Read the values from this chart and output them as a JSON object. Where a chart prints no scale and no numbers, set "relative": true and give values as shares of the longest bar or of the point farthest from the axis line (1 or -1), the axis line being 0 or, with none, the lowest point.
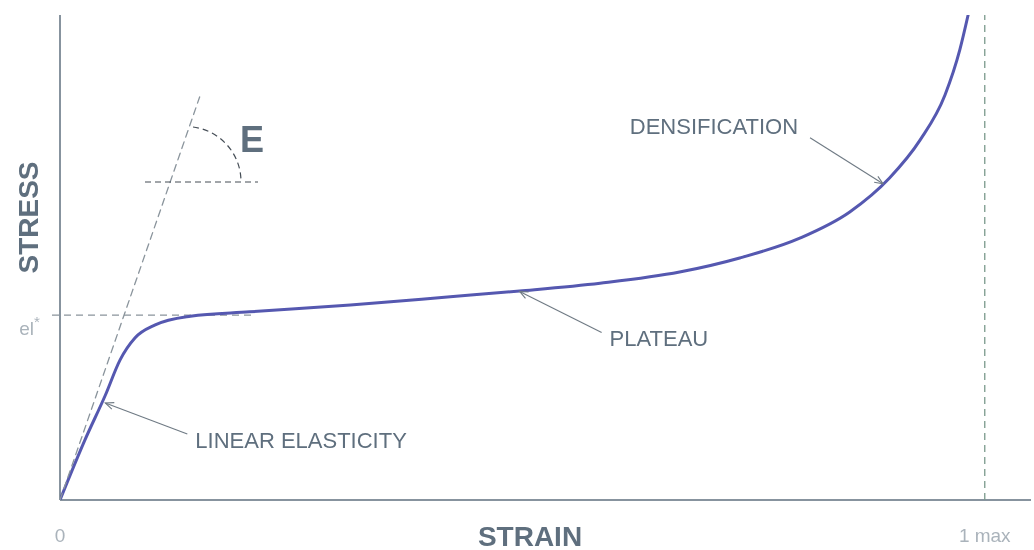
{
  "chart_data": {
    "type": "line",
    "relative": true,
    "xlabel": "STRAIN",
    "ylabel": "STRESS",
    "xlim": [
      0,
      1.05
    ],
    "xticks": [
      0,
      {
        "value": 1,
        "label": "1 max"
      }
    ],
    "series": [
      {
        "color": "#5558b0",
        "x": [
          0,
          0.027,
          0.049,
          0.065,
          0.081,
          0.103,
          0.141,
          0.205,
          0.314,
          0.422,
          0.497,
          0.584,
          0.67,
          0.735,
          0.8,
          0.854,
          0.897,
          0.93,
          0.957,
          0.973,
          0.982
        ],
        "values": [
          0,
          0.124,
          0.216,
          0.289,
          0.334,
          0.361,
          0.379,
          0.388,
          0.402,
          0.419,
          0.431,
          0.447,
          0.47,
          0.499,
          0.54,
          0.594,
          0.664,
          0.742,
          0.835,
          0.928,
          1
        ]
      },
      {
        "type": "line",
        "color": "#8a949c",
        "line_style": "dashed",
        "x": [
          0,
          0.151
        ],
        "values": [
          0,
          0.831
        ]
      }
    ],
    "ref_lines": [
      {
        "axis": "y",
        "value": 0.381,
        "label": "el$^{*}$",
        "color": "#8a949c",
        "line_style": "dashed"
      },
      {
        "axis": "x",
        "value": 1,
        "color": "#7a9a8c",
        "line_style": "dashed"
      }
    ],
    "annotations": [
      "E",
      {
        "text": "DENSIFICATION",
        "x": 0.89,
        "y": 0.652
      },
      {
        "text": "PLATEAU",
        "x": 0.497,
        "y": 0.43
      },
      {
        "text": "LINEAR ELASTICITY",
        "x": 0.049,
        "y": 0.2
      }
    ]
  }
}
